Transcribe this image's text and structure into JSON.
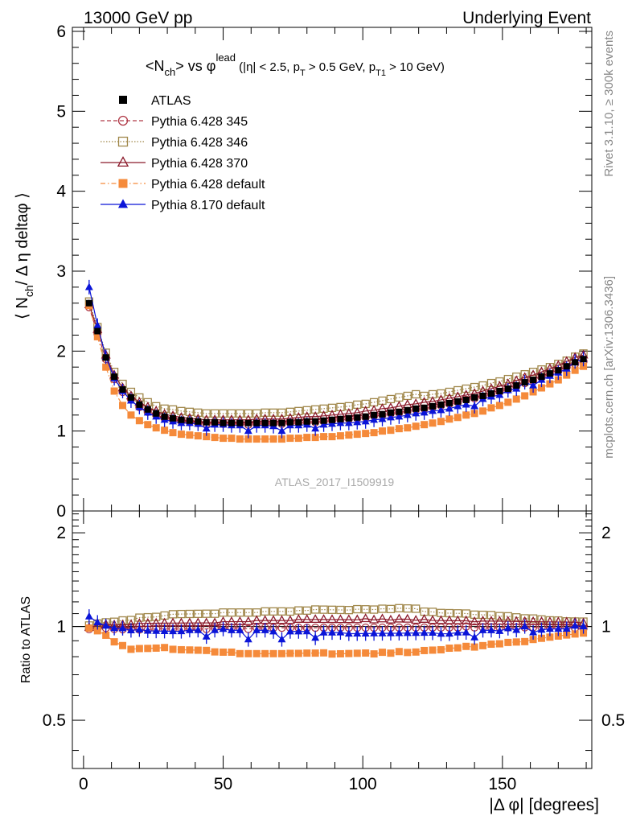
{
  "header": {
    "left": "13000 GeV pp",
    "right": "Underlying Event"
  },
  "side_labels": {
    "rivet": "Rivet 3.1.10, ≥ 300k events",
    "mcplots": "mcplots.cern.ch [arXiv:1306.3436]"
  },
  "chart_data": {
    "type": "scatter",
    "title": {
      "p1": "<N",
      "p1_sub": "ch",
      "p2": "> vs φ",
      "p2_sup": "lead",
      "p3": " (|η| < 2.5, p",
      "p3_sub": "T",
      "p4": " > 0.5 GeV, p",
      "p4_sub": "T1",
      "p5": " > 10 GeV)"
    },
    "xlabel": "|Δ φ| [degrees]",
    "ylabel": {
      "p1": "⟨ N",
      "p1_sub": "ch",
      "p2": "/ Δ η deltaφ ⟩"
    },
    "ratio_ylabel": "Ratio to ATLAS",
    "watermark": "ATLAS_2017_I1509919",
    "xlim": [
      -4,
      182
    ],
    "xticks": [
      "0",
      "50",
      "100",
      "150"
    ],
    "xtick_values": [
      0,
      50,
      100,
      150
    ],
    "main_ylim": [
      0,
      6.05
    ],
    "main_yticks": [
      "0",
      "1",
      "2",
      "3",
      "4",
      "5",
      "6"
    ],
    "main_ytick_values": [
      0,
      1,
      2,
      3,
      4,
      5,
      6
    ],
    "ratio_ylim": [
      0.35,
      2.35
    ],
    "ratio_yticks": [
      "0.5",
      "1",
      "2"
    ],
    "ratio_ytick_values": [
      0.5,
      1,
      2
    ],
    "legend_position": "top-left",
    "x": [
      2,
      5,
      8,
      11,
      14,
      17,
      20,
      23,
      26,
      29,
      32,
      35,
      38,
      41,
      44,
      47,
      50,
      53,
      56,
      59,
      62,
      65,
      68,
      71,
      74,
      77,
      80,
      83,
      86,
      89,
      92,
      95,
      98,
      101,
      104,
      107,
      110,
      113,
      116,
      119,
      122,
      125,
      128,
      131,
      134,
      137,
      140,
      143,
      146,
      149,
      152,
      155,
      158,
      161,
      164,
      167,
      170,
      173,
      176,
      179
    ],
    "reference": {
      "name": "ATLAS",
      "color": "#000000",
      "marker": "square-filled",
      "values": [
        2.6,
        2.25,
        1.92,
        1.68,
        1.52,
        1.42,
        1.33,
        1.27,
        1.22,
        1.18,
        1.16,
        1.14,
        1.13,
        1.12,
        1.11,
        1.11,
        1.1,
        1.1,
        1.1,
        1.1,
        1.1,
        1.1,
        1.1,
        1.1,
        1.11,
        1.11,
        1.12,
        1.12,
        1.13,
        1.14,
        1.15,
        1.16,
        1.17,
        1.18,
        1.2,
        1.21,
        1.23,
        1.24,
        1.26,
        1.28,
        1.29,
        1.31,
        1.33,
        1.35,
        1.37,
        1.39,
        1.42,
        1.44,
        1.47,
        1.5,
        1.53,
        1.57,
        1.61,
        1.64,
        1.68,
        1.72,
        1.76,
        1.81,
        1.86,
        1.9
      ]
    },
    "series": [
      {
        "name": "Pythia 6.428 345",
        "color": "#b03a48",
        "marker": "circle-open",
        "line": "dashed",
        "values": [
          2.55,
          2.22,
          1.9,
          1.65,
          1.49,
          1.4,
          1.3,
          1.24,
          1.2,
          1.16,
          1.14,
          1.12,
          1.11,
          1.1,
          1.09,
          1.1,
          1.09,
          1.09,
          1.09,
          1.08,
          1.09,
          1.09,
          1.09,
          1.09,
          1.1,
          1.1,
          1.11,
          1.11,
          1.12,
          1.13,
          1.14,
          1.15,
          1.16,
          1.17,
          1.19,
          1.2,
          1.22,
          1.23,
          1.25,
          1.27,
          1.28,
          1.3,
          1.32,
          1.34,
          1.36,
          1.39,
          1.41,
          1.43,
          1.46,
          1.49,
          1.52,
          1.56,
          1.6,
          1.63,
          1.67,
          1.71,
          1.75,
          1.8,
          1.84,
          1.87
        ]
      },
      {
        "name": "Pythia 6.428 346",
        "color": "#a0874a",
        "marker": "square-open",
        "line": "dotted",
        "values": [
          2.62,
          2.3,
          1.98,
          1.74,
          1.59,
          1.49,
          1.42,
          1.36,
          1.31,
          1.28,
          1.27,
          1.25,
          1.24,
          1.23,
          1.22,
          1.22,
          1.22,
          1.22,
          1.22,
          1.22,
          1.22,
          1.23,
          1.23,
          1.23,
          1.24,
          1.25,
          1.26,
          1.27,
          1.28,
          1.29,
          1.3,
          1.31,
          1.33,
          1.34,
          1.36,
          1.38,
          1.4,
          1.42,
          1.44,
          1.46,
          1.44,
          1.46,
          1.47,
          1.49,
          1.51,
          1.53,
          1.55,
          1.57,
          1.6,
          1.62,
          1.65,
          1.68,
          1.71,
          1.74,
          1.77,
          1.8,
          1.84,
          1.88,
          1.93,
          1.97
        ]
      },
      {
        "name": "Pythia 6.428 370",
        "color": "#8b1a2b",
        "marker": "triangle-open",
        "line": "solid",
        "values": [
          2.58,
          2.27,
          1.95,
          1.7,
          1.54,
          1.44,
          1.36,
          1.3,
          1.25,
          1.21,
          1.19,
          1.17,
          1.16,
          1.15,
          1.14,
          1.14,
          1.14,
          1.14,
          1.14,
          1.14,
          1.15,
          1.15,
          1.15,
          1.15,
          1.16,
          1.17,
          1.18,
          1.18,
          1.19,
          1.2,
          1.21,
          1.22,
          1.23,
          1.25,
          1.26,
          1.28,
          1.29,
          1.31,
          1.33,
          1.34,
          1.36,
          1.37,
          1.39,
          1.41,
          1.43,
          1.45,
          1.47,
          1.5,
          1.53,
          1.56,
          1.59,
          1.63,
          1.67,
          1.7,
          1.74,
          1.78,
          1.82,
          1.87,
          1.92,
          1.95
        ]
      },
      {
        "name": "Pythia 6.428 default",
        "color": "#f58a3a",
        "marker": "square-filled",
        "line": "dashdot",
        "values": [
          2.57,
          2.18,
          1.8,
          1.5,
          1.32,
          1.2,
          1.13,
          1.08,
          1.04,
          1.01,
          0.98,
          0.96,
          0.95,
          0.94,
          0.93,
          0.92,
          0.91,
          0.91,
          0.9,
          0.9,
          0.9,
          0.9,
          0.9,
          0.9,
          0.91,
          0.91,
          0.92,
          0.92,
          0.93,
          0.93,
          0.94,
          0.95,
          0.96,
          0.97,
          0.98,
          1.0,
          1.01,
          1.03,
          1.04,
          1.06,
          1.08,
          1.1,
          1.12,
          1.15,
          1.17,
          1.2,
          1.22,
          1.25,
          1.29,
          1.32,
          1.36,
          1.4,
          1.44,
          1.49,
          1.54,
          1.59,
          1.64,
          1.7,
          1.76,
          1.81
        ]
      },
      {
        "name": "Pythia 8.170 default",
        "color": "#0a14d8",
        "marker": "triangle-filled",
        "line": "solid",
        "values": [
          2.8,
          2.32,
          1.93,
          1.66,
          1.5,
          1.38,
          1.3,
          1.23,
          1.18,
          1.14,
          1.12,
          1.1,
          1.1,
          1.09,
          1.03,
          1.08,
          1.08,
          1.07,
          1.07,
          1.0,
          1.07,
          1.07,
          1.06,
          1.0,
          1.07,
          1.07,
          1.08,
          1.03,
          1.08,
          1.09,
          1.1,
          1.1,
          1.11,
          1.12,
          1.14,
          1.15,
          1.17,
          1.18,
          1.2,
          1.22,
          1.23,
          1.25,
          1.26,
          1.28,
          1.31,
          1.33,
          1.31,
          1.4,
          1.43,
          1.45,
          1.51,
          1.53,
          1.61,
          1.57,
          1.64,
          1.69,
          1.73,
          1.78,
          1.87,
          1.9
        ]
      }
    ]
  }
}
